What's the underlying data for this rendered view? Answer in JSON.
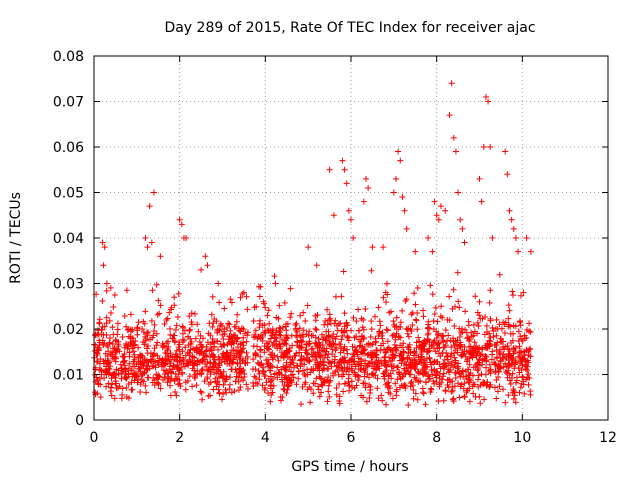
{
  "chart_data": {
    "type": "scatter",
    "title": "Day 289 of 2015, Rate Of TEC Index for receiver ajac",
    "xlabel": "GPS time / hours",
    "ylabel": "ROTI / TECUs",
    "xlim": [
      0,
      12
    ],
    "ylim": [
      0,
      0.08
    ],
    "x_ticks": [
      "0",
      "2",
      "4",
      "6",
      "8",
      "10",
      "12"
    ],
    "y_ticks": [
      "0",
      "0.01",
      "0.02",
      "0.03",
      "0.04",
      "0.05",
      "0.06",
      "0.07",
      "0.08"
    ],
    "grid": true,
    "marker": "+",
    "color": "#ff0000",
    "series": [
      {
        "name": "ROTI",
        "segments": [
          {
            "x_start": 0.0,
            "x_end": 3.6,
            "baseline": 0.013,
            "spread": 0.009,
            "min": 0.004
          },
          {
            "x_start": 3.7,
            "x_end": 10.2,
            "baseline": 0.013,
            "spread": 0.01,
            "min": 0.003
          }
        ],
        "outliers": [
          [
            0.2,
            0.039
          ],
          [
            0.25,
            0.038
          ],
          [
            0.22,
            0.034
          ],
          [
            0.3,
            0.03
          ],
          [
            1.2,
            0.04
          ],
          [
            1.25,
            0.038
          ],
          [
            1.3,
            0.047
          ],
          [
            1.4,
            0.05
          ],
          [
            1.55,
            0.036
          ],
          [
            1.35,
            0.039
          ],
          [
            2.0,
            0.044
          ],
          [
            2.05,
            0.043
          ],
          [
            2.1,
            0.04
          ],
          [
            2.15,
            0.04
          ],
          [
            2.5,
            0.033
          ],
          [
            2.6,
            0.036
          ],
          [
            2.65,
            0.034
          ],
          [
            2.9,
            0.03
          ],
          [
            3.5,
            0.028
          ],
          [
            5.0,
            0.038
          ],
          [
            5.2,
            0.034
          ],
          [
            5.5,
            0.055
          ],
          [
            5.6,
            0.045
          ],
          [
            5.8,
            0.057
          ],
          [
            5.85,
            0.055
          ],
          [
            5.9,
            0.052
          ],
          [
            5.95,
            0.046
          ],
          [
            6.0,
            0.044
          ],
          [
            6.05,
            0.04
          ],
          [
            6.3,
            0.048
          ],
          [
            6.35,
            0.053
          ],
          [
            6.4,
            0.051
          ],
          [
            6.5,
            0.038
          ],
          [
            6.75,
            0.038
          ],
          [
            7.0,
            0.05
          ],
          [
            7.05,
            0.053
          ],
          [
            7.1,
            0.059
          ],
          [
            7.15,
            0.057
          ],
          [
            7.2,
            0.049
          ],
          [
            7.25,
            0.046
          ],
          [
            7.3,
            0.042
          ],
          [
            7.5,
            0.037
          ],
          [
            7.8,
            0.04
          ],
          [
            7.9,
            0.037
          ],
          [
            7.95,
            0.048
          ],
          [
            8.0,
            0.045
          ],
          [
            8.05,
            0.044
          ],
          [
            8.1,
            0.047
          ],
          [
            8.2,
            0.046
          ],
          [
            8.3,
            0.067
          ],
          [
            8.35,
            0.074
          ],
          [
            8.4,
            0.062
          ],
          [
            8.45,
            0.059
          ],
          [
            8.5,
            0.05
          ],
          [
            8.55,
            0.044
          ],
          [
            8.6,
            0.042
          ],
          [
            8.65,
            0.039
          ],
          [
            9.0,
            0.053
          ],
          [
            9.05,
            0.048
          ],
          [
            9.1,
            0.06
          ],
          [
            9.15,
            0.071
          ],
          [
            9.2,
            0.07
          ],
          [
            9.25,
            0.06
          ],
          [
            9.3,
            0.04
          ],
          [
            9.6,
            0.059
          ],
          [
            9.65,
            0.054
          ],
          [
            9.7,
            0.046
          ],
          [
            9.75,
            0.044
          ],
          [
            9.8,
            0.042
          ],
          [
            9.85,
            0.04
          ],
          [
            9.9,
            0.037
          ],
          [
            10.1,
            0.04
          ],
          [
            10.2,
            0.037
          ]
        ]
      }
    ]
  }
}
